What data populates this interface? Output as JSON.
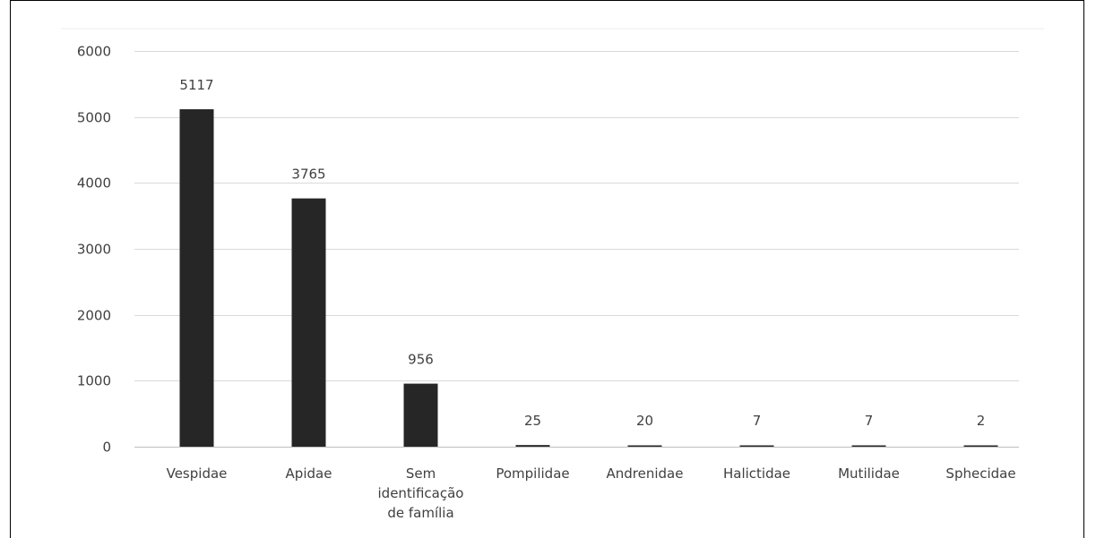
{
  "chart_data": {
    "type": "bar",
    "categories": [
      [
        "Vespidae"
      ],
      [
        "Apidae"
      ],
      [
        "Sem",
        "identificação",
        "de família"
      ],
      [
        "Pompilidae"
      ],
      [
        "Andrenidae"
      ],
      [
        "Halictidae"
      ],
      [
        "Mutilidae"
      ],
      [
        "Sphecidae"
      ]
    ],
    "values": [
      5117,
      3765,
      956,
      25,
      20,
      7,
      7,
      2
    ],
    "data_labels": [
      "5117",
      "3765",
      "956",
      "25",
      "20",
      "7",
      "7",
      "2"
    ],
    "yticks": [
      "0",
      "1000",
      "2000",
      "3000",
      "4000",
      "5000",
      "6000"
    ],
    "ylim": [
      0,
      6000
    ],
    "grid": true,
    "legend": "none",
    "bar_color": "#262626",
    "grid_color": "#d9d9d9",
    "axis_color": "#bfbfbf"
  }
}
